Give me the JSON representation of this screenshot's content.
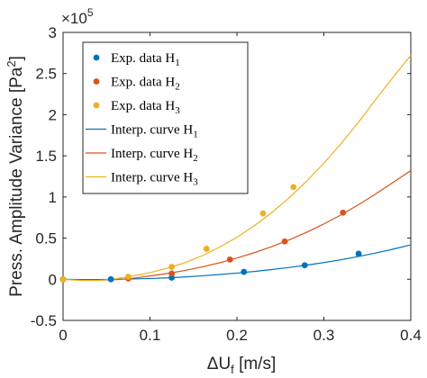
{
  "chart_data": {
    "type": "scatter",
    "xlabel": "ΔU",
    "xlabel_sub": "f",
    "xlabel_unit": " [m/s]",
    "ylabel": "Press. Amplitude Variance [Pa",
    "ylabel_sup": "2",
    "ylabel_end": "]",
    "y_exponent_base": "×10",
    "y_exponent_power": "5",
    "xlim": [
      0,
      0.4
    ],
    "ylim": [
      -0.5,
      3
    ],
    "x_ticks": [
      "0",
      "0.1",
      "0.2",
      "0.3",
      "0.4"
    ],
    "y_ticks": [
      "-0.5",
      "0",
      "0.5",
      "1",
      "1.5",
      "2",
      "2.5",
      "3"
    ],
    "legend_position": "top-left",
    "series": [
      {
        "name": "Exp. data H",
        "subscript": "1",
        "kind": "points",
        "color": "#0072BD",
        "x": [
          0,
          0.055,
          0.125,
          0.208,
          0.278,
          0.34
        ],
        "y": [
          0,
          0,
          0.02,
          0.09,
          0.17,
          0.31
        ]
      },
      {
        "name": "Exp. data H",
        "subscript": "2",
        "kind": "points",
        "color": "#D95319",
        "x": [
          0,
          0.075,
          0.125,
          0.192,
          0.255,
          0.322
        ],
        "y": [
          0,
          0.01,
          0.07,
          0.24,
          0.46,
          0.81
        ]
      },
      {
        "name": "Exp. data H",
        "subscript": "3",
        "kind": "points",
        "color": "#EDB120",
        "x": [
          0,
          0.075,
          0.125,
          0.165,
          0.23,
          0.265
        ],
        "y": [
          0,
          0.03,
          0.15,
          0.37,
          0.8,
          1.12
        ]
      },
      {
        "name": "Interp. curve H",
        "subscript": "1",
        "kind": "line",
        "color": "#0072BD",
        "x": [
          0,
          0.02,
          0.04,
          0.06,
          0.08,
          0.1,
          0.12,
          0.14,
          0.16,
          0.18,
          0.2,
          0.22,
          0.24,
          0.26,
          0.28,
          0.3,
          0.32,
          0.34,
          0.36,
          0.38,
          0.4
        ],
        "y": [
          0,
          -0.004,
          -0.004,
          0,
          0.004,
          0.009,
          0.017,
          0.028,
          0.042,
          0.058,
          0.075,
          0.095,
          0.118,
          0.143,
          0.171,
          0.203,
          0.238,
          0.277,
          0.32,
          0.367,
          0.418
        ]
      },
      {
        "name": "Interp. curve H",
        "subscript": "2",
        "kind": "line",
        "color": "#D95319",
        "x": [
          0,
          0.02,
          0.04,
          0.06,
          0.08,
          0.1,
          0.12,
          0.14,
          0.16,
          0.18,
          0.2,
          0.22,
          0.24,
          0.26,
          0.28,
          0.3,
          0.32,
          0.34,
          0.36,
          0.38,
          0.4
        ],
        "y": [
          0,
          -0.01,
          -0.012,
          -0.006,
          0.012,
          0.04,
          0.07,
          0.106,
          0.15,
          0.2,
          0.258,
          0.323,
          0.396,
          0.478,
          0.57,
          0.672,
          0.784,
          0.907,
          1.04,
          1.18,
          1.32
        ]
      },
      {
        "name": "Interp. curve H",
        "subscript": "3",
        "kind": "line",
        "color": "#EDB120",
        "x": [
          0,
          0.02,
          0.04,
          0.06,
          0.08,
          0.1,
          0.12,
          0.14,
          0.16,
          0.18,
          0.2,
          0.22,
          0.24,
          0.26,
          0.28,
          0.3,
          0.32,
          0.34,
          0.36,
          0.38,
          0.4
        ],
        "y": [
          0,
          -0.015,
          -0.015,
          0.005,
          0.04,
          0.08,
          0.135,
          0.2,
          0.285,
          0.39,
          0.51,
          0.65,
          0.81,
          0.99,
          1.19,
          1.41,
          1.65,
          1.91,
          2.19,
          2.46,
          2.72
        ]
      }
    ]
  }
}
